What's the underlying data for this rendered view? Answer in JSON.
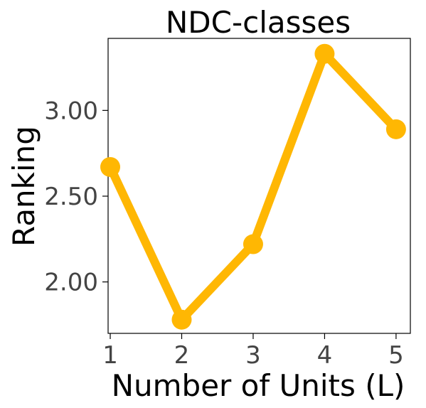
{
  "chart_data": {
    "type": "line",
    "title": "NDC-classes",
    "xlabel": "Number of Units (L)",
    "ylabel": "Ranking",
    "x": [
      1,
      2,
      3,
      4,
      5
    ],
    "series": [
      {
        "values": [
          2.67,
          1.78,
          2.22,
          3.33,
          2.89
        ],
        "color": "#FFB703"
      }
    ],
    "xlim": [
      0.97,
      5.2
    ],
    "ylim": [
      1.7,
      3.42
    ],
    "xticks": [
      1,
      2,
      3,
      4,
      5
    ],
    "xtick_labels": [
      "1",
      "2",
      "3",
      "4",
      "5"
    ],
    "yticks": [
      2.0,
      2.5,
      3.0
    ],
    "ytick_labels": [
      "2.00",
      "2.50",
      "3.00"
    ],
    "grid": false,
    "legend": false
  }
}
